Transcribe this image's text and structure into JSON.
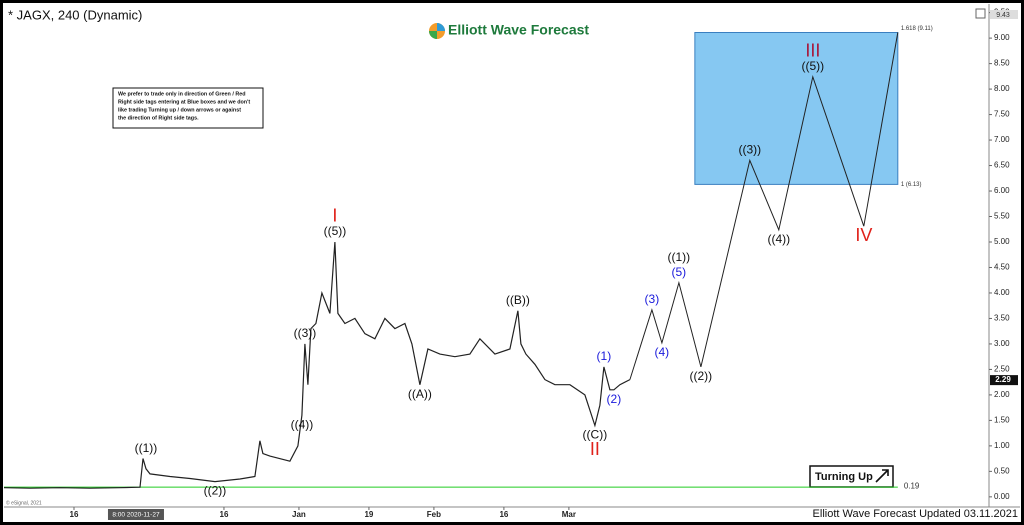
{
  "chart_data": {
    "type": "line",
    "title": "* JAGX, 240 (Dynamic)",
    "brand": "Elliott Wave Forecast",
    "footer": "Elliott Wave Forecast Updated 03.11.2021",
    "copyright": "© eSignal, 2021",
    "note_lines": [
      "We prefer to trade only in direction of Green / Red",
      "Right side tags entering at Blue boxes and we don't",
      "like trading Turning up / down arrows or against",
      "the direction of Right side tags."
    ],
    "button_label": "Turning Up",
    "xlim": [
      0,
      197
    ],
    "ylim": [
      -0.16,
      9.63
    ],
    "grid": false,
    "xticks": [
      {
        "value": 14,
        "label": "16"
      },
      {
        "value": 44,
        "label": "16"
      },
      {
        "value": 59,
        "label": "Jan"
      },
      {
        "value": 73,
        "label": "19"
      },
      {
        "value": 86,
        "label": "Feb"
      },
      {
        "value": 100,
        "label": "16"
      },
      {
        "value": 113,
        "label": "Mar"
      }
    ],
    "crosshair_date": {
      "value": 26.4,
      "label": "8:00 2020-11-27"
    },
    "yticks": [
      {
        "value": 0,
        "label": "0.00"
      },
      {
        "value": 0.5,
        "label": "0.50"
      },
      {
        "value": 1,
        "label": "1.00"
      },
      {
        "value": 1.5,
        "label": "1.50"
      },
      {
        "value": 2,
        "label": "2.00"
      },
      {
        "value": 2.5,
        "label": "2.50"
      },
      {
        "value": 3,
        "label": "3.00"
      },
      {
        "value": 3.5,
        "label": "3.50"
      },
      {
        "value": 4,
        "label": "4.00"
      },
      {
        "value": 4.5,
        "label": "4.50"
      },
      {
        "value": 5,
        "label": "5.00"
      },
      {
        "value": 5.5,
        "label": "5.50"
      },
      {
        "value": 6,
        "label": "6.00"
      },
      {
        "value": 6.5,
        "label": "6.50"
      },
      {
        "value": 7,
        "label": "7.00"
      },
      {
        "value": 7.5,
        "label": "7.50"
      },
      {
        "value": 8,
        "label": "8.00"
      },
      {
        "value": 8.5,
        "label": "8.50"
      },
      {
        "value": 9,
        "label": "9.00"
      },
      {
        "value": 9.5,
        "label": "9.50"
      }
    ],
    "series": [
      {
        "name": "JAGX",
        "color": "#222222",
        "x": [
          0,
          5.2,
          11.2,
          17.2,
          23.2,
          27.2,
          27.8,
          28.4,
          29.2,
          33.2,
          37.2,
          42.2,
          47.2,
          50.2,
          51.2,
          51.8,
          53.2,
          57.2,
          58.8,
          59.6,
          60.2,
          60.8,
          61.4,
          62.4,
          63.6,
          65.2,
          66.2,
          66.8,
          68.2,
          70.2,
          72.2,
          74.2,
          76.2,
          78.2,
          80.2,
          81.6,
          83.2,
          84.8,
          87.2,
          90.2,
          93.2,
          95.2,
          98.2,
          101.2,
          102.8,
          103.4,
          104.4,
          106.2,
          108.2,
          110.2,
          113.2,
          116.2,
          118.2,
          119.2,
          120,
          121.2,
          122,
          123.2,
          125.2
        ],
        "values": [
          0.18,
          0.17,
          0.18,
          0.17,
          0.18,
          0.19,
          0.75,
          0.55,
          0.45,
          0.4,
          0.36,
          0.3,
          0.35,
          0.4,
          1.1,
          0.85,
          0.8,
          0.7,
          1.0,
          1.6,
          3.0,
          2.2,
          3.3,
          3.4,
          4.0,
          3.6,
          5.0,
          3.6,
          3.4,
          3.5,
          3.2,
          3.1,
          3.5,
          3.3,
          3.4,
          3.0,
          2.2,
          2.9,
          2.8,
          2.75,
          2.8,
          3.1,
          2.8,
          2.9,
          3.65,
          3.0,
          2.8,
          2.6,
          2.3,
          2.2,
          2.2,
          2.0,
          1.4,
          1.8,
          2.55,
          2.1,
          2.1,
          2.2,
          2.3
        ]
      },
      {
        "name": "Projection",
        "color": "#222222",
        "x": [
          125.2,
          129.6,
          131.6,
          135,
          139.4,
          149.2,
          155,
          161.8,
          172,
          178.8
        ],
        "values": [
          2.3,
          3.67,
          3.02,
          4.2,
          2.55,
          6.6,
          5.24,
          8.24,
          5.31,
          9.11
        ]
      }
    ],
    "target_box": {
      "x": [
        138.2,
        178.8
      ],
      "lower": 6.13,
      "upper": 9.11,
      "lower_label": "1 (6.13)",
      "upper_label": "1.618 (9.11)",
      "color": "#86c8f2"
    },
    "support_level": 0.19,
    "support_color": "#22cc22",
    "last_price": 2.29,
    "high_marker": 9.43,
    "annotations": [
      {
        "text": "((1))",
        "x": 28.4,
        "y": 0.75,
        "position": "above",
        "color": "#111111"
      },
      {
        "text": "((2))",
        "x": 42.2,
        "y": 0.3,
        "position": "below",
        "color": "#111111"
      },
      {
        "text": "((3))",
        "x": 60.2,
        "y": 3.0,
        "position": "above",
        "color": "#111111"
      },
      {
        "text": "((4))",
        "x": 59.6,
        "y": 1.6,
        "position": "below",
        "color": "#111111"
      },
      {
        "text": "((5))",
        "x": 66.2,
        "y": 5.0,
        "position": "above",
        "color": "#111111"
      },
      {
        "text": "I",
        "x": 66.2,
        "y": 5.0,
        "position": "above",
        "color": "#e0211a"
      },
      {
        "text": "((A))",
        "x": 83.2,
        "y": 2.2,
        "position": "below",
        "color": "#111111"
      },
      {
        "text": "((B))",
        "x": 102.8,
        "y": 3.65,
        "position": "above",
        "color": "#111111"
      },
      {
        "text": "((C))",
        "x": 118.2,
        "y": 1.4,
        "position": "below",
        "color": "#111111"
      },
      {
        "text": "II",
        "x": 118.2,
        "y": 1.4,
        "position": "below",
        "color": "#e0211a"
      },
      {
        "text": "(1)",
        "x": 120,
        "y": 2.55,
        "position": "above",
        "color": "#1a1adb"
      },
      {
        "text": "(2)",
        "x": 122,
        "y": 2.1,
        "position": "below",
        "color": "#1a1adb"
      },
      {
        "text": "(3)",
        "x": 129.6,
        "y": 3.67,
        "position": "above",
        "color": "#1a1adb"
      },
      {
        "text": "(4)",
        "x": 131.6,
        "y": 3.02,
        "position": "below",
        "color": "#1a1adb"
      },
      {
        "text": "(5)",
        "x": 135,
        "y": 4.2,
        "position": "above",
        "color": "#1a1adb"
      },
      {
        "text": "((1))",
        "x": 135,
        "y": 4.2,
        "position": "above",
        "color": "#111111"
      },
      {
        "text": "((2))",
        "x": 139.4,
        "y": 2.55,
        "position": "below",
        "color": "#111111"
      },
      {
        "text": "((3))",
        "x": 149.2,
        "y": 6.6,
        "position": "above",
        "color": "#111111"
      },
      {
        "text": "((4))",
        "x": 155,
        "y": 5.24,
        "position": "below",
        "color": "#111111"
      },
      {
        "text": "((5))",
        "x": 161.8,
        "y": 8.24,
        "position": "above",
        "color": "#111111"
      },
      {
        "text": "III",
        "x": 161.8,
        "y": 8.24,
        "position": "above",
        "color": "#a8163a"
      },
      {
        "text": "IV",
        "x": 172,
        "y": 5.31,
        "position": "below",
        "color": "#e0211a"
      }
    ]
  }
}
